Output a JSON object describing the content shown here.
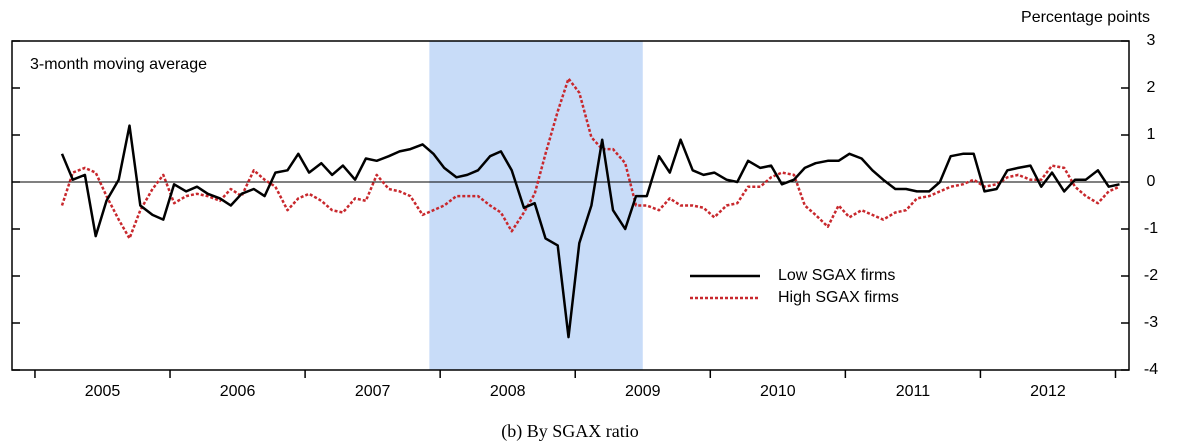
{
  "chart_data": {
    "type": "line",
    "title": "(b) By SGAX ratio",
    "y_axis_label": "Percentage points",
    "annotation": "3-month moving average",
    "shaded_region": [
      2007.92,
      2009.5
    ],
    "shade_color": "#c8dcf8",
    "zero_line": true,
    "legend_position": "lower-right",
    "xlim": [
      2004.83,
      2013.1
    ],
    "xticks": [
      2005,
      2006,
      2007,
      2008,
      2009,
      2010,
      2011,
      2012,
      2013
    ],
    "xtick_labels": [
      {
        "value": 2005.5,
        "label": "2005"
      },
      {
        "value": 2006.5,
        "label": "2006"
      },
      {
        "value": 2007.5,
        "label": "2007"
      },
      {
        "value": 2008.5,
        "label": "2008"
      },
      {
        "value": 2009.5,
        "label": "2009"
      },
      {
        "value": 2010.5,
        "label": "2010"
      },
      {
        "value": 2011.5,
        "label": "2011"
      },
      {
        "value": 2012.5,
        "label": "2012"
      }
    ],
    "ylim": [
      -4,
      3
    ],
    "yticks": [
      -4,
      -3,
      -2,
      -1,
      0,
      1,
      2,
      3
    ],
    "x": [
      2005.2,
      2005.28,
      2005.37,
      2005.45,
      2005.53,
      2005.62,
      2005.7,
      2005.78,
      2005.87,
      2005.95,
      2006.03,
      2006.12,
      2006.2,
      2006.28,
      2006.37,
      2006.45,
      2006.53,
      2006.62,
      2006.7,
      2006.78,
      2006.87,
      2006.95,
      2007.03,
      2007.12,
      2007.2,
      2007.28,
      2007.37,
      2007.45,
      2007.53,
      2007.62,
      2007.7,
      2007.78,
      2007.87,
      2007.95,
      2008.03,
      2008.12,
      2008.2,
      2008.28,
      2008.37,
      2008.45,
      2008.53,
      2008.62,
      2008.7,
      2008.78,
      2008.87,
      2008.95,
      2009.03,
      2009.12,
      2009.2,
      2009.28,
      2009.37,
      2009.45,
      2009.53,
      2009.62,
      2009.7,
      2009.78,
      2009.87,
      2009.95,
      2010.03,
      2010.12,
      2010.2,
      2010.28,
      2010.37,
      2010.45,
      2010.53,
      2010.62,
      2010.7,
      2010.78,
      2010.87,
      2010.95,
      2011.03,
      2011.12,
      2011.2,
      2011.28,
      2011.37,
      2011.45,
      2011.53,
      2011.62,
      2011.7,
      2011.78,
      2011.87,
      2011.95,
      2012.03,
      2012.12,
      2012.2,
      2012.28,
      2012.37,
      2012.45,
      2012.53,
      2012.62,
      2012.7,
      2012.78,
      2012.87,
      2012.95,
      2013.03
    ],
    "series": [
      {
        "name": "Low SGAX firms",
        "color": "#000000",
        "dash": "solid",
        "values": [
          0.6,
          0.05,
          0.15,
          -1.15,
          -0.4,
          0.05,
          1.2,
          -0.5,
          -0.7,
          -0.8,
          -0.05,
          -0.2,
          -0.1,
          -0.25,
          -0.35,
          -0.5,
          -0.25,
          -0.15,
          -0.3,
          0.2,
          0.25,
          0.6,
          0.2,
          0.4,
          0.15,
          0.35,
          0.05,
          0.5,
          0.45,
          0.55,
          0.65,
          0.7,
          0.8,
          0.6,
          0.3,
          0.1,
          0.15,
          0.25,
          0.55,
          0.65,
          0.25,
          -0.55,
          -0.45,
          -1.2,
          -1.35,
          -3.3,
          -1.3,
          -0.5,
          0.9,
          -0.6,
          -1.0,
          -0.3,
          -0.3,
          0.55,
          0.2,
          0.9,
          0.25,
          0.15,
          0.2,
          0.05,
          0.0,
          0.45,
          0.3,
          0.35,
          -0.05,
          0.05,
          0.3,
          0.4,
          0.45,
          0.45,
          0.6,
          0.5,
          0.25,
          0.05,
          -0.15,
          -0.15,
          -0.2,
          -0.2,
          0.0,
          0.55,
          0.6,
          0.6,
          -0.2,
          -0.15,
          0.25,
          0.3,
          0.35,
          -0.1,
          0.2,
          -0.2,
          0.05,
          0.05,
          0.25,
          -0.1,
          -0.05
        ]
      },
      {
        "name": "High SGAX firms",
        "color": "#c8282d",
        "dash": "dotted",
        "values": [
          -0.5,
          0.2,
          0.3,
          0.2,
          -0.3,
          -0.8,
          -1.2,
          -0.6,
          -0.15,
          0.15,
          -0.45,
          -0.3,
          -0.25,
          -0.3,
          -0.4,
          -0.15,
          -0.3,
          0.25,
          0.05,
          -0.1,
          -0.6,
          -0.35,
          -0.25,
          -0.4,
          -0.6,
          -0.65,
          -0.35,
          -0.4,
          0.15,
          -0.15,
          -0.2,
          -0.3,
          -0.7,
          -0.6,
          -0.5,
          -0.3,
          -0.3,
          -0.3,
          -0.5,
          -0.65,
          -1.05,
          -0.65,
          -0.25,
          0.6,
          1.5,
          2.2,
          1.9,
          0.95,
          0.7,
          0.7,
          0.4,
          -0.5,
          -0.5,
          -0.6,
          -0.35,
          -0.5,
          -0.5,
          -0.55,
          -0.75,
          -0.5,
          -0.45,
          -0.1,
          -0.1,
          0.1,
          0.2,
          0.15,
          -0.5,
          -0.7,
          -0.95,
          -0.5,
          -0.75,
          -0.6,
          -0.7,
          -0.8,
          -0.65,
          -0.6,
          -0.35,
          -0.3,
          -0.2,
          -0.1,
          -0.05,
          0.05,
          -0.1,
          -0.05,
          0.1,
          0.15,
          0.05,
          0.05,
          0.35,
          0.3,
          -0.1,
          -0.3,
          -0.45,
          -0.2,
          -0.1
        ]
      }
    ]
  }
}
